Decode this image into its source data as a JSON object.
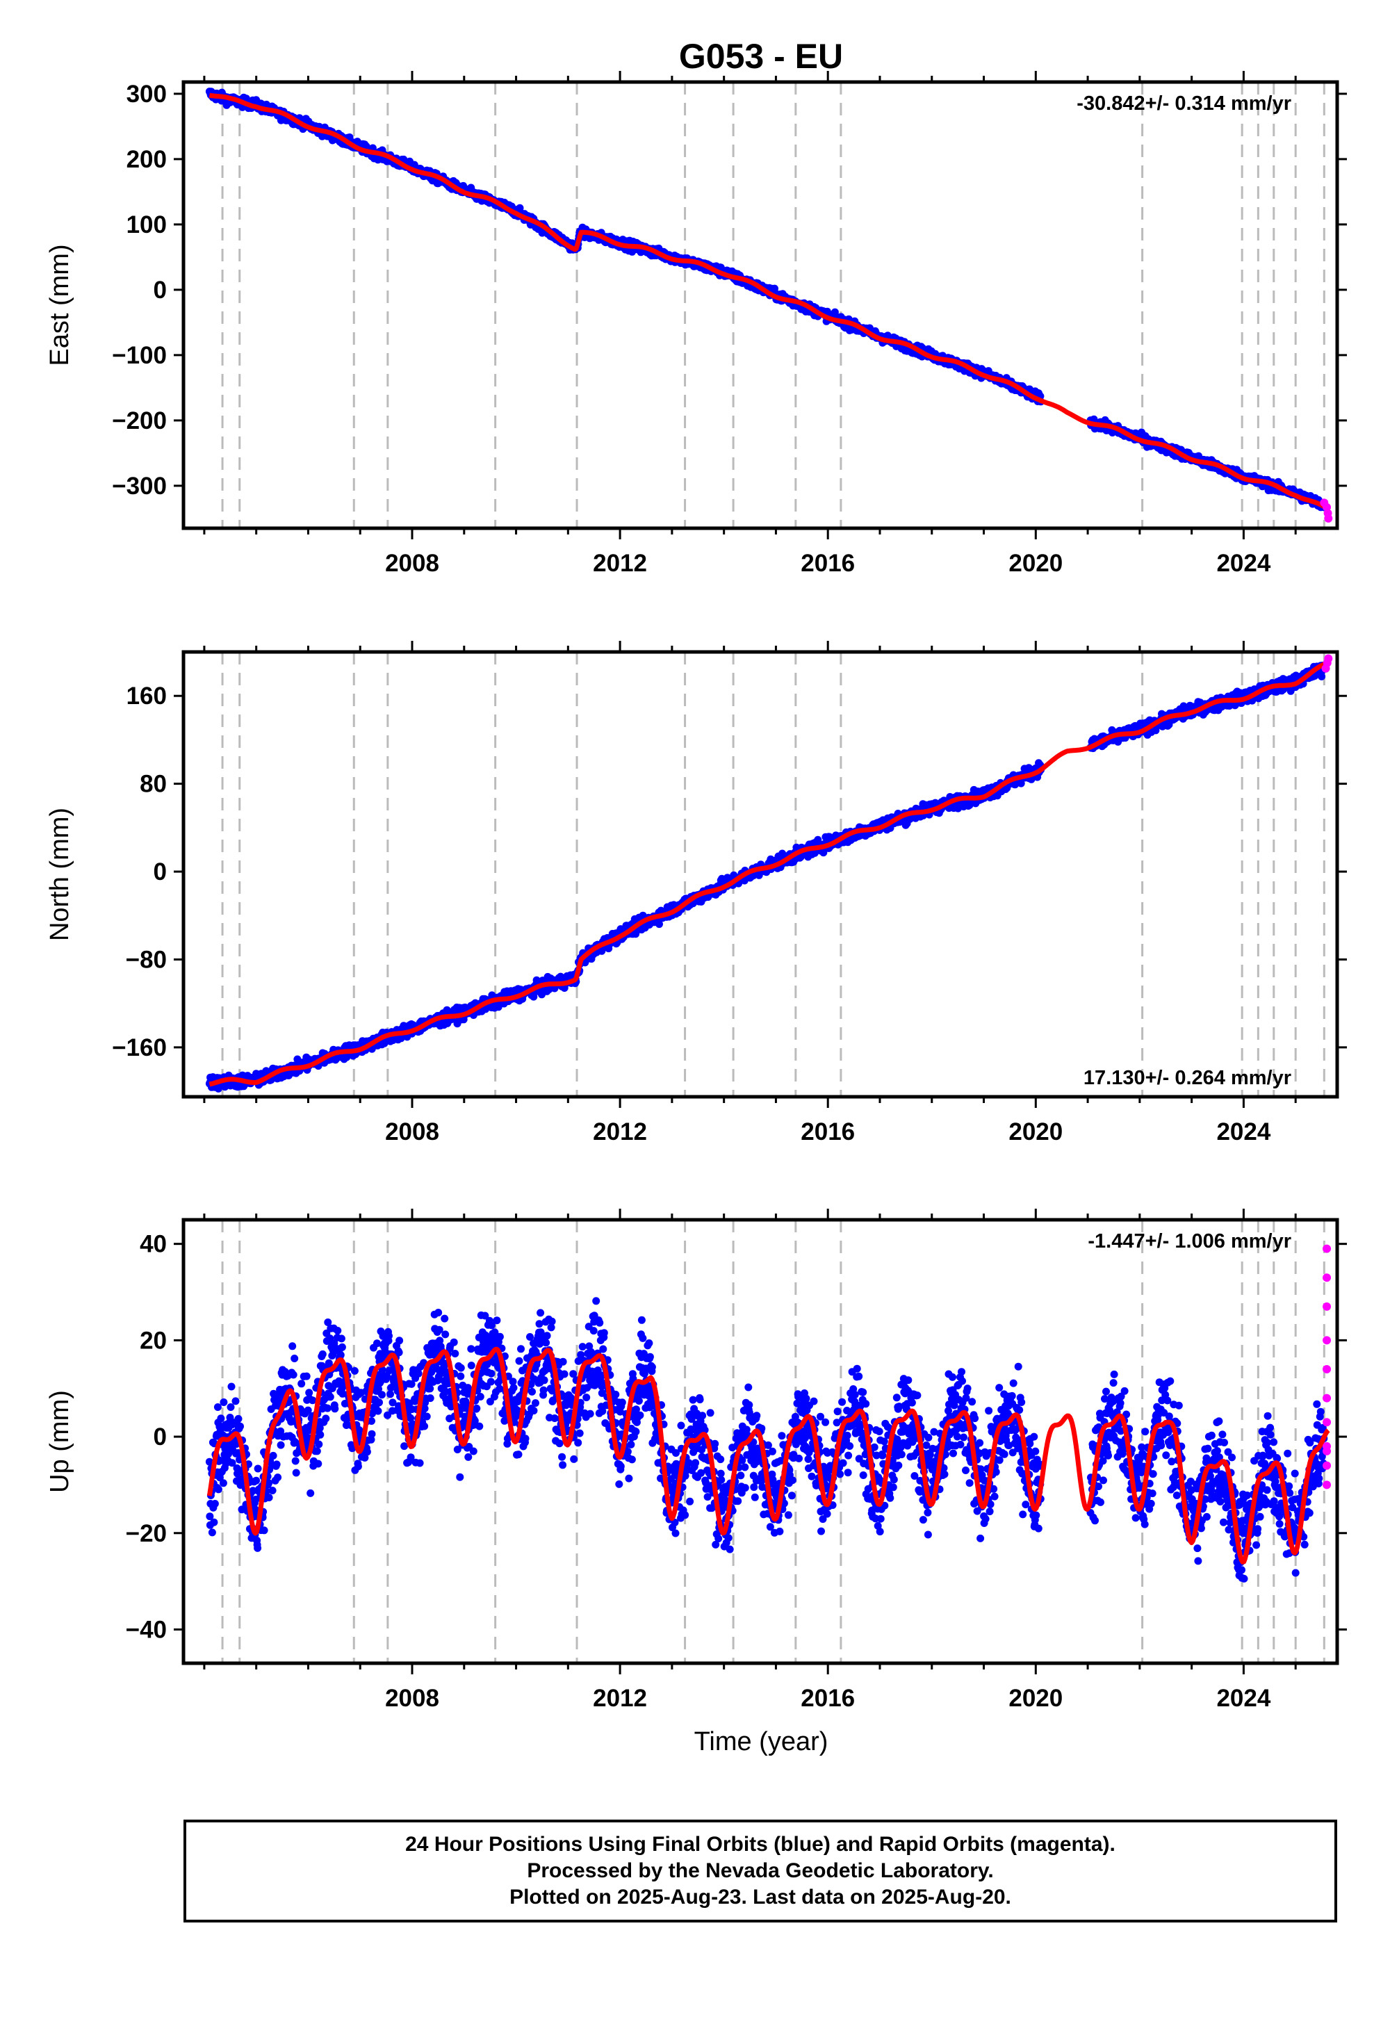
{
  "colors": {
    "final_orbits": "#0000ff",
    "rapid_orbits": "#ff00ff",
    "model": "#ff0000",
    "event_lines": "#bbbbbb"
  },
  "chart_data": [
    {
      "type": "scatter",
      "title": "G053 - EU",
      "ylabel": "East (mm)",
      "xlabel": "",
      "xlim": [
        2003.6,
        2025.8
      ],
      "ylim": [
        -365,
        318
      ],
      "yticks": [
        -300,
        -200,
        -100,
        0,
        100,
        200,
        300
      ],
      "ytick_labels": [
        "−300",
        "−200",
        "−100",
        "0",
        "100",
        "200",
        "300"
      ],
      "xticks": [
        2008,
        2012,
        2016,
        2020,
        2024
      ],
      "rate_label": "-30.842+/- 0.314 mm/yr",
      "rate_position": "top-right",
      "velocity_mm_per_yr": -30.842,
      "series": [
        {
          "kind": "final_orbits_scatter",
          "x": [
            2004.1,
            2004.5,
            2005.0,
            2006.0,
            2007.0,
            2008.0,
            2009.0,
            2010.0,
            2011.15,
            2011.25,
            2012.0,
            2013.0,
            2014.0,
            2015.0,
            2016.0,
            2017.0,
            2018.0,
            2019.0,
            2020.05,
            2021.1,
            2022.0,
            2023.0,
            2024.0,
            2025.0,
            2025.55
          ],
          "y": [
            300,
            290,
            283,
            252,
            218,
            187,
            152,
            120,
            63,
            88,
            72,
            50,
            27,
            -8,
            -40,
            -72,
            -100,
            -128,
            -165,
            -203,
            -227,
            -257,
            -286,
            -312,
            -330
          ],
          "noise": 5
        },
        {
          "kind": "rapid_orbits_scatter",
          "x": [
            2025.55,
            2025.6,
            2025.62,
            2025.63
          ],
          "y": [
            -326,
            -333,
            -342,
            -350
          ]
        },
        {
          "kind": "model",
          "x": [
            2004.1,
            2004.5,
            2005.0,
            2006.0,
            2007.0,
            2008.0,
            2009.0,
            2010.0,
            2011.15,
            2011.25,
            2012.0,
            2013.0,
            2014.0,
            2015.0,
            2016.0,
            2017.0,
            2018.0,
            2019.0,
            2020.05,
            2020.6,
            2021.1,
            2022.0,
            2023.0,
            2024.0,
            2025.0,
            2025.63
          ],
          "y": [
            300,
            290,
            283,
            252,
            218,
            187,
            152,
            120,
            63,
            88,
            72,
            50,
            27,
            -8,
            -40,
            -72,
            -100,
            -128,
            -165,
            -190,
            -203,
            -227,
            -257,
            -286,
            -312,
            -338
          ],
          "seasonal": 3
        }
      ]
    },
    {
      "type": "scatter",
      "title": "",
      "ylabel": "North (mm)",
      "xlabel": "",
      "xlim": [
        2003.6,
        2025.8
      ],
      "ylim": [
        -205,
        200
      ],
      "yticks": [
        -160,
        -80,
        0,
        80,
        160
      ],
      "ytick_labels": [
        "−160",
        "−80",
        "0",
        "80",
        "160"
      ],
      "xticks": [
        2008,
        2012,
        2016,
        2020,
        2024
      ],
      "rate_label": "17.130+/- 0.264 mm/yr",
      "rate_position": "bottom-right",
      "velocity_mm_per_yr": 17.13,
      "series": [
        {
          "kind": "final_orbits_scatter",
          "x": [
            2004.1,
            2005.0,
            2006.0,
            2007.0,
            2008.0,
            2009.0,
            2010.0,
            2011.15,
            2011.25,
            2012.0,
            2013.0,
            2014.0,
            2015.0,
            2016.0,
            2017.0,
            2018.0,
            2019.0,
            2020.05,
            2021.1,
            2022.0,
            2023.0,
            2024.0,
            2025.0,
            2025.55
          ],
          "y": [
            -192,
            -190,
            -175,
            -160,
            -143,
            -128,
            -112,
            -97,
            -80,
            -57,
            -35,
            -12,
            8,
            26,
            42,
            58,
            70,
            93,
            116,
            129,
            147,
            159,
            173,
            185
          ],
          "noise": 4
        },
        {
          "kind": "rapid_orbits_scatter",
          "x": [
            2025.58,
            2025.61,
            2025.63
          ],
          "y": [
            185,
            190,
            194
          ]
        },
        {
          "kind": "model",
          "x": [
            2004.1,
            2005.0,
            2006.0,
            2007.0,
            2008.0,
            2009.0,
            2010.0,
            2011.15,
            2011.25,
            2012.0,
            2013.0,
            2014.0,
            2015.0,
            2016.0,
            2017.0,
            2018.0,
            2019.0,
            2020.05,
            2020.6,
            2021.1,
            2022.0,
            2023.0,
            2024.0,
            2025.0,
            2025.63
          ],
          "y": [
            -192,
            -190,
            -175,
            -160,
            -143,
            -128,
            -112,
            -97,
            -80,
            -57,
            -35,
            -12,
            8,
            26,
            42,
            58,
            70,
            93,
            108,
            116,
            129,
            147,
            159,
            173,
            189
          ],
          "seasonal": 2
        }
      ]
    },
    {
      "type": "scatter",
      "title": "",
      "ylabel": "Up (mm)",
      "xlabel": "Time (year)",
      "xlim": [
        2003.6,
        2025.8
      ],
      "ylim": [
        -47,
        45
      ],
      "yticks": [
        -40,
        -20,
        0,
        20,
        40
      ],
      "ytick_labels": [
        "−40",
        "−20",
        "0",
        "20",
        "40"
      ],
      "xticks": [
        2008,
        2012,
        2016,
        2020,
        2024
      ],
      "rate_label": "-1.447+/- 1.006 mm/yr",
      "rate_position": "top-right",
      "velocity_mm_per_yr": -1.447,
      "series": [
        {
          "kind": "final_orbits_scatter",
          "x": [
            2004.1,
            2005.0,
            2006.0,
            2008.0,
            2010.0,
            2011.5,
            2012.6,
            2013.0,
            2014.0,
            2016.0,
            2018.0,
            2020.05,
            2021.1,
            2022.5,
            2023.0,
            2024.0,
            2025.0,
            2025.55
          ],
          "y": [
            -5,
            -8,
            8,
            10,
            11,
            10,
            5,
            -5,
            -8,
            -2,
            -2,
            -3,
            -3,
            -3,
            -10,
            -14,
            -12,
            -8
          ],
          "noise": 7,
          "seasonal": 7
        },
        {
          "kind": "rapid_orbits_scatter",
          "x": [
            2025.6,
            2025.6,
            2025.6,
            2025.6,
            2025.6,
            2025.6,
            2025.6,
            2025.6,
            2025.6,
            2025.6,
            2025.6
          ],
          "y": [
            39,
            33,
            27,
            20,
            14,
            8,
            3,
            -2,
            -6,
            -10,
            -3
          ]
        },
        {
          "kind": "model",
          "x": [
            2004.1,
            2005.0,
            2006.0,
            2008.0,
            2010.0,
            2011.5,
            2012.6,
            2013.0,
            2014.0,
            2016.0,
            2018.0,
            2020.05,
            2021.1,
            2022.5,
            2023.0,
            2024.0,
            2025.0,
            2025.63
          ],
          "y": [
            -5,
            -8,
            8,
            10,
            11,
            10,
            5,
            -5,
            -8,
            -2,
            -2,
            -3,
            -3,
            -3,
            -10,
            -14,
            -12,
            -6
          ],
          "seasonal": 9
        }
      ]
    }
  ],
  "event_lines": [
    2004.35,
    2004.68,
    2006.88,
    2007.53,
    2009.6,
    2011.17,
    2013.25,
    2014.18,
    2015.38,
    2016.25,
    2022.05,
    2023.97,
    2024.28,
    2024.58,
    2025.0,
    2025.55
  ],
  "footer": {
    "line1": "24 Hour Positions Using Final Orbits (blue) and Rapid Orbits (magenta).",
    "line2": "Processed by the Nevada Geodetic Laboratory.",
    "line3": "Plotted on 2025-Aug-23. Last data on 2025-Aug-20."
  }
}
